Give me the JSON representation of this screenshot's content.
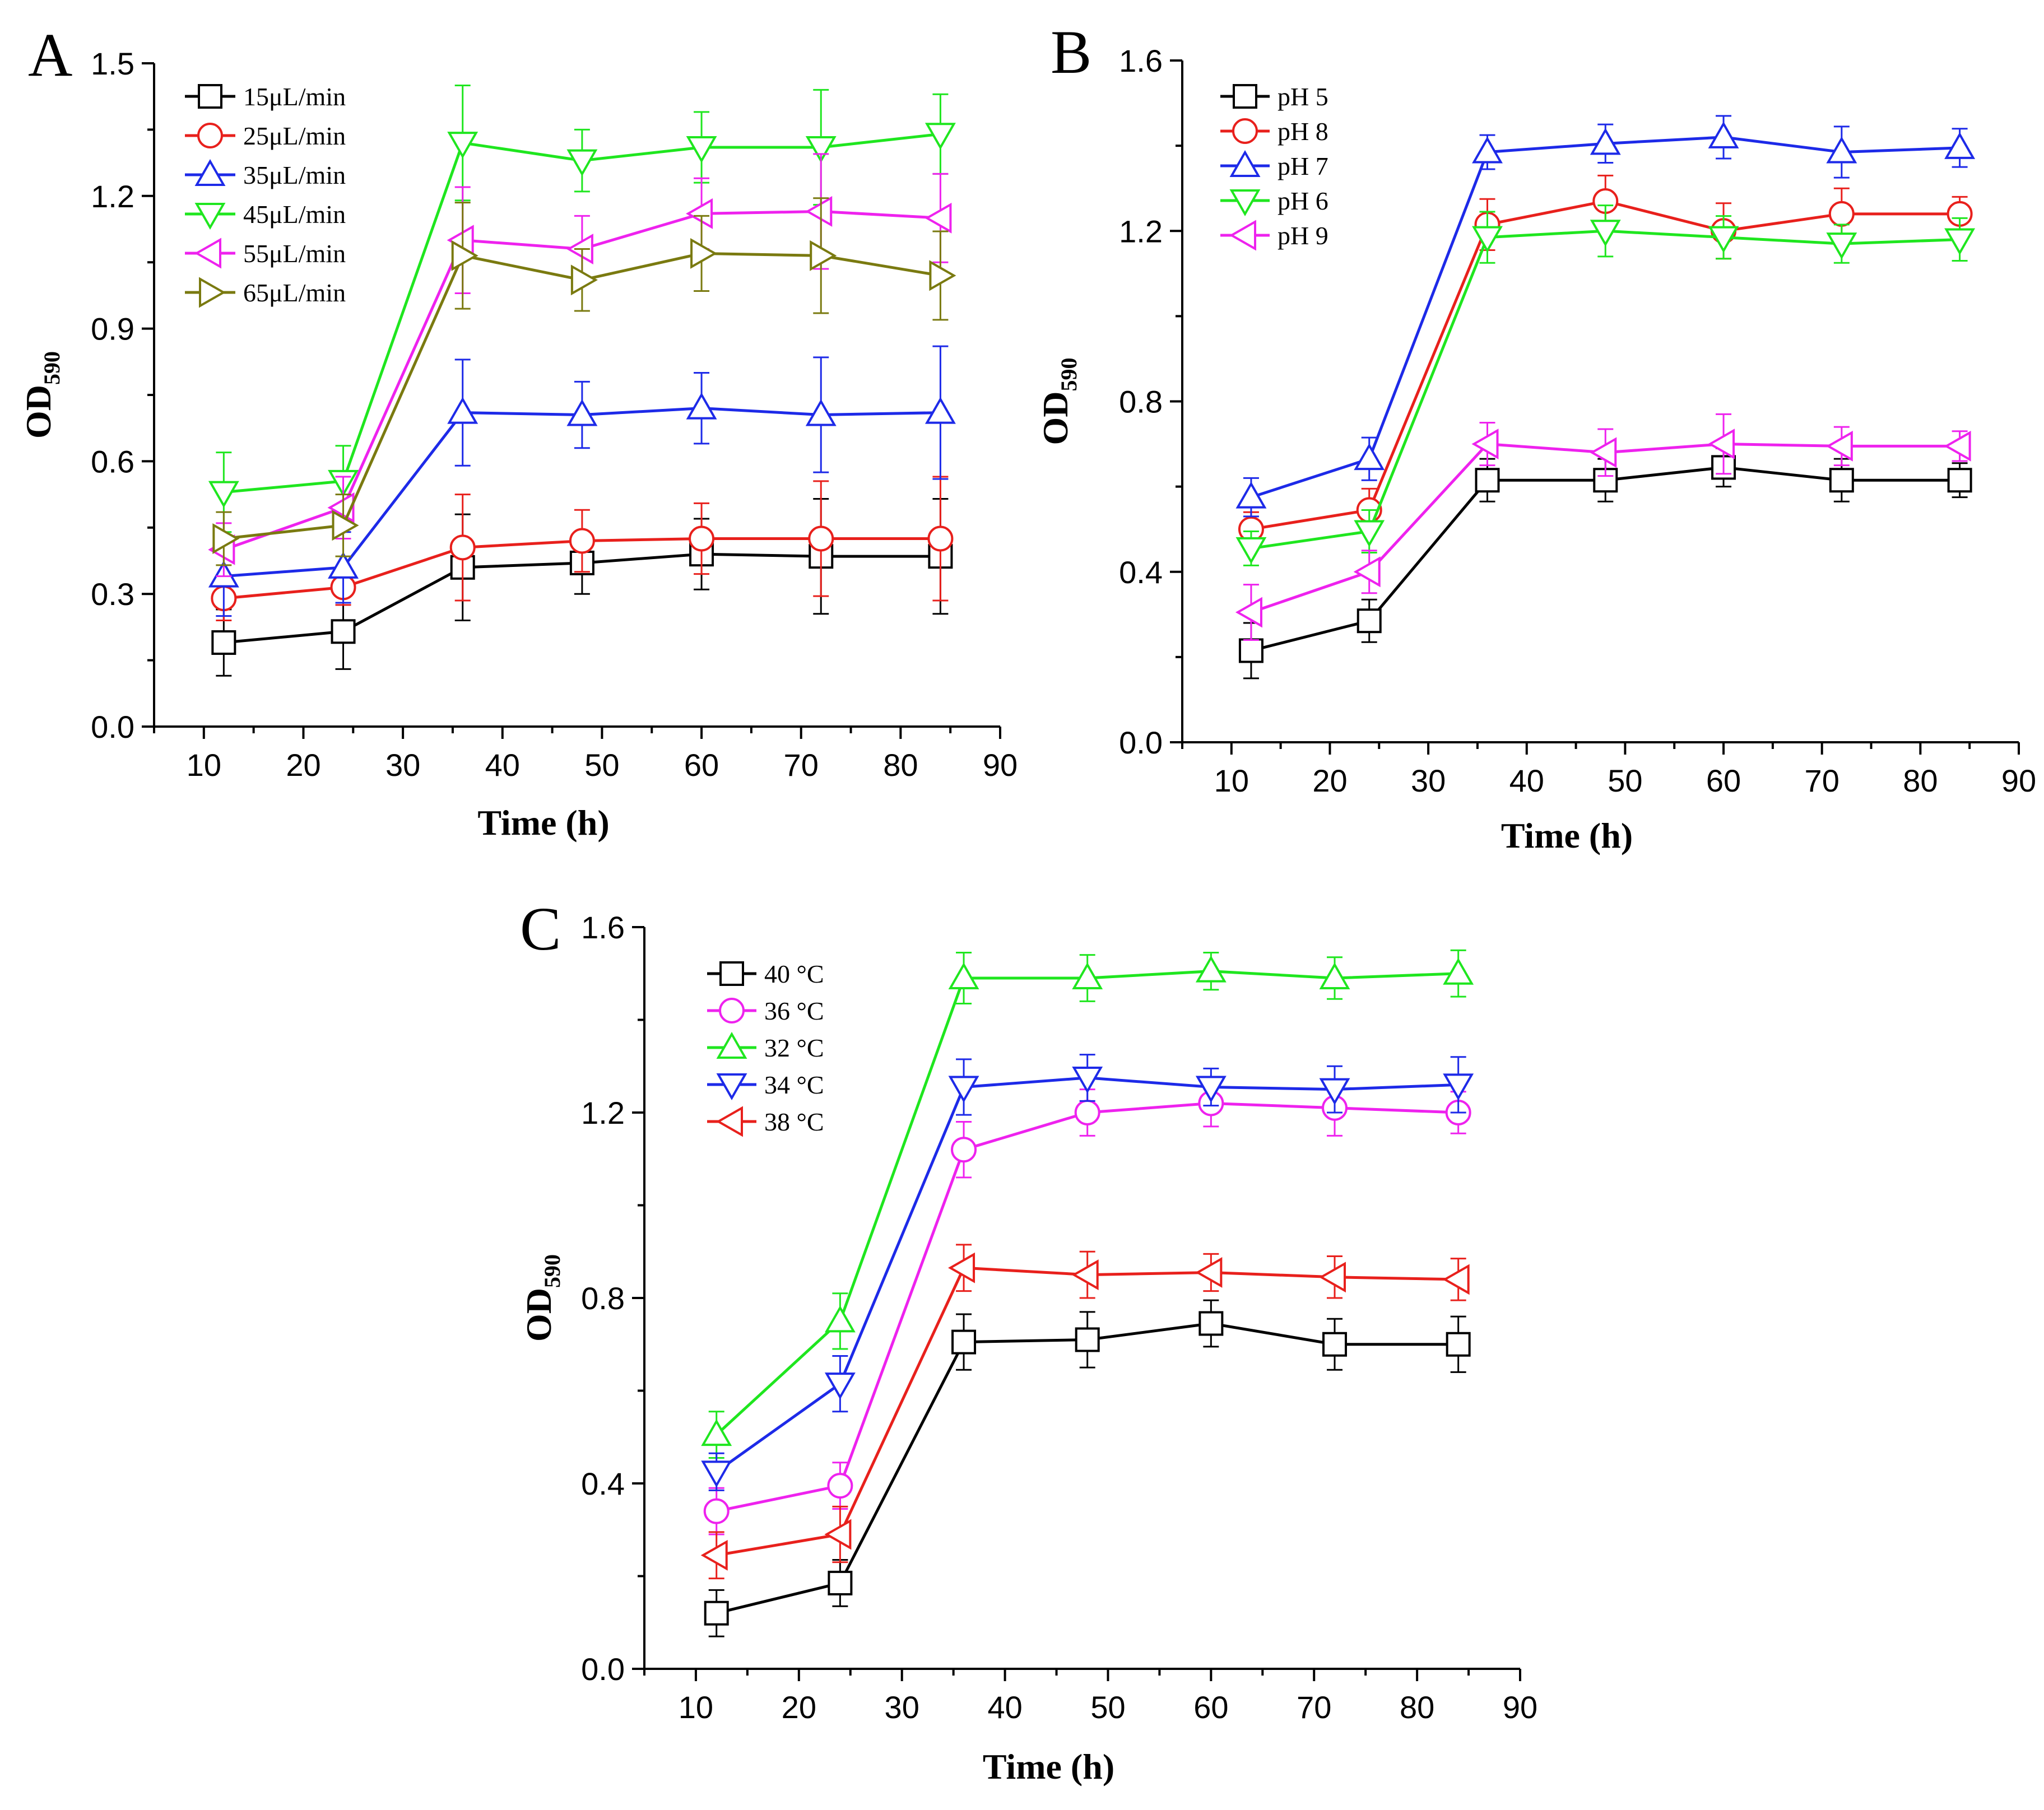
{
  "chart_data": [
    {
      "panel": "A",
      "type": "line",
      "title": "",
      "xlabel": "Time (h)",
      "ylabel_main": "OD",
      "ylabel_sub": "590",
      "xlim": [
        5,
        90
      ],
      "ylim": [
        0,
        1.5
      ],
      "xticks": [
        10,
        20,
        30,
        40,
        50,
        60,
        70,
        80,
        90
      ],
      "yticks": [
        0.0,
        0.3,
        0.6,
        0.9,
        1.2,
        1.5
      ],
      "ytick_labels": [
        "0.0",
        "0.3",
        "0.6",
        "0.9",
        "1.2",
        "1.5"
      ],
      "legend_position": "top-left",
      "x": [
        12,
        24,
        36,
        48,
        60,
        72,
        84
      ],
      "series": [
        {
          "name": "15μL/min",
          "color": "#000000",
          "marker": "square",
          "values": [
            0.19,
            0.215,
            0.36,
            0.37,
            0.39,
            0.385,
            0.385
          ],
          "errors": [
            0.075,
            0.085,
            0.12,
            0.07,
            0.08,
            0.13,
            0.13
          ]
        },
        {
          "name": "25μL/min",
          "color": "#e8201c",
          "marker": "circle",
          "values": [
            0.29,
            0.315,
            0.405,
            0.42,
            0.425,
            0.425,
            0.425
          ],
          "errors": [
            0.05,
            0.04,
            0.12,
            0.07,
            0.08,
            0.13,
            0.14
          ]
        },
        {
          "name": "35μL/min",
          "color": "#1d2ae8",
          "marker": "triangle-up",
          "values": [
            0.34,
            0.36,
            0.71,
            0.705,
            0.72,
            0.705,
            0.71
          ],
          "errors": [
            0.09,
            0.08,
            0.12,
            0.075,
            0.08,
            0.13,
            0.15
          ]
        },
        {
          "name": "45μL/min",
          "color": "#1fe61f",
          "marker": "triangle-down",
          "values": [
            0.53,
            0.555,
            1.32,
            1.28,
            1.31,
            1.31,
            1.34
          ],
          "errors": [
            0.09,
            0.08,
            0.13,
            0.07,
            0.08,
            0.13,
            0.09
          ]
        },
        {
          "name": "55μL/min",
          "color": "#ee22ee",
          "marker": "triangle-left",
          "values": [
            0.4,
            0.495,
            1.1,
            1.08,
            1.16,
            1.165,
            1.15
          ],
          "errors": [
            0.06,
            0.07,
            0.12,
            0.075,
            0.08,
            0.13,
            0.1
          ]
        },
        {
          "name": "65μL/min",
          "color": "#7a7a10",
          "marker": "triangle-right",
          "values": [
            0.425,
            0.455,
            1.065,
            1.01,
            1.07,
            1.065,
            1.02
          ],
          "errors": [
            0.06,
            0.07,
            0.12,
            0.07,
            0.085,
            0.13,
            0.1
          ]
        }
      ]
    },
    {
      "panel": "B",
      "type": "line",
      "title": "",
      "xlabel": "Time (h)",
      "ylabel_main": "OD",
      "ylabel_sub": "590",
      "xlim": [
        5,
        90
      ],
      "ylim": [
        0,
        1.6
      ],
      "xticks": [
        10,
        20,
        30,
        40,
        50,
        60,
        70,
        80,
        90
      ],
      "yticks": [
        0.0,
        0.4,
        0.8,
        1.2,
        1.6
      ],
      "ytick_labels": [
        "0.0",
        "0.4",
        "0.8",
        "1.2",
        "1.6"
      ],
      "legend_position": "top-left",
      "x": [
        12,
        24,
        36,
        48,
        60,
        72,
        84
      ],
      "series": [
        {
          "name": "pH 5",
          "color": "#000000",
          "marker": "square",
          "values": [
            0.215,
            0.285,
            0.615,
            0.615,
            0.645,
            0.615,
            0.615
          ],
          "errors": [
            0.065,
            0.05,
            0.05,
            0.05,
            0.045,
            0.05,
            0.04
          ]
        },
        {
          "name": "pH 8",
          "color": "#e8201c",
          "marker": "circle",
          "values": [
            0.5,
            0.545,
            1.215,
            1.27,
            1.2,
            1.24,
            1.24
          ],
          "errors": [
            0.04,
            0.05,
            0.06,
            0.06,
            0.065,
            0.06,
            0.04
          ]
        },
        {
          "name": "pH 7",
          "color": "#1d2ae8",
          "marker": "triangle-up",
          "values": [
            0.575,
            0.665,
            1.385,
            1.405,
            1.42,
            1.385,
            1.395
          ],
          "errors": [
            0.045,
            0.05,
            0.04,
            0.045,
            0.05,
            0.06,
            0.045
          ]
        },
        {
          "name": "pH 6",
          "color": "#1fe61f",
          "marker": "triangle-down",
          "values": [
            0.455,
            0.495,
            1.185,
            1.2,
            1.185,
            1.17,
            1.18
          ],
          "errors": [
            0.04,
            0.05,
            0.06,
            0.06,
            0.05,
            0.045,
            0.05
          ]
        },
        {
          "name": "pH 9",
          "color": "#ee22ee",
          "marker": "triangle-left",
          "values": [
            0.305,
            0.4,
            0.7,
            0.68,
            0.7,
            0.695,
            0.695
          ],
          "errors": [
            0.065,
            0.05,
            0.05,
            0.055,
            0.07,
            0.045,
            0.035
          ]
        }
      ]
    },
    {
      "panel": "C",
      "type": "line",
      "title": "",
      "xlabel": "Time (h)",
      "ylabel_main": "OD",
      "ylabel_sub": "590",
      "xlim": [
        5,
        90
      ],
      "ylim": [
        0,
        1.6
      ],
      "xticks": [
        10,
        20,
        30,
        40,
        50,
        60,
        70,
        80,
        90
      ],
      "yticks": [
        0.0,
        0.4,
        0.8,
        1.2,
        1.6
      ],
      "ytick_labels": [
        "0.0",
        "0.4",
        "0.8",
        "1.2",
        "1.6"
      ],
      "legend_position": "top-left",
      "x": [
        12,
        24,
        36,
        48,
        60,
        72,
        84
      ],
      "series": [
        {
          "name": "40 °C",
          "color": "#000000",
          "marker": "square",
          "values": [
            0.12,
            0.185,
            0.705,
            0.71,
            0.745,
            0.7,
            0.7
          ],
          "errors": [
            0.05,
            0.05,
            0.06,
            0.06,
            0.05,
            0.055,
            0.06
          ]
        },
        {
          "name": "36 °C",
          "color": "#ee22ee",
          "marker": "circle",
          "values": [
            0.34,
            0.395,
            1.12,
            1.2,
            1.22,
            1.21,
            1.2
          ],
          "errors": [
            0.05,
            0.05,
            0.06,
            0.05,
            0.05,
            0.06,
            0.045
          ]
        },
        {
          "name": "32 °C",
          "color": "#1fe61f",
          "marker": "triangle-up",
          "values": [
            0.505,
            0.75,
            1.49,
            1.49,
            1.505,
            1.49,
            1.5
          ],
          "errors": [
            0.05,
            0.06,
            0.055,
            0.05,
            0.04,
            0.045,
            0.05
          ]
        },
        {
          "name": "34 °C",
          "color": "#1d2ae8",
          "marker": "triangle-down",
          "values": [
            0.425,
            0.615,
            1.255,
            1.275,
            1.255,
            1.25,
            1.26
          ],
          "errors": [
            0.04,
            0.06,
            0.06,
            0.05,
            0.04,
            0.05,
            0.06
          ]
        },
        {
          "name": "38 °C",
          "color": "#e8201c",
          "marker": "triangle-left",
          "values": [
            0.245,
            0.29,
            0.865,
            0.85,
            0.855,
            0.845,
            0.84
          ],
          "errors": [
            0.05,
            0.06,
            0.05,
            0.05,
            0.04,
            0.045,
            0.045
          ]
        }
      ]
    }
  ]
}
